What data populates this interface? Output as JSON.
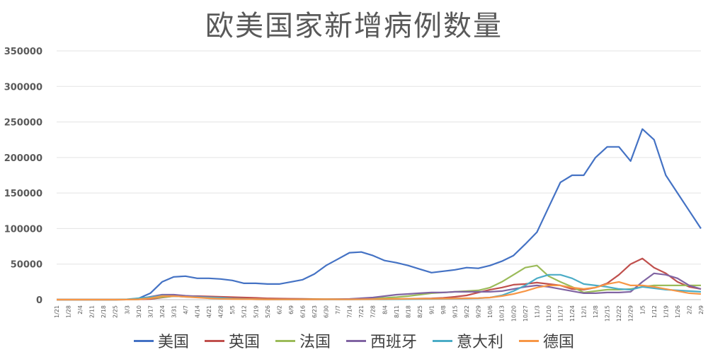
{
  "chart_data": {
    "type": "line",
    "title": "欧美国家新增病例数量",
    "xlabel": "",
    "ylabel": "",
    "ylim": [
      0,
      350000
    ],
    "y_ticks": [
      "0",
      "50000",
      "100000",
      "150000",
      "200000",
      "250000",
      "300000",
      "350000"
    ],
    "x_tick_labels": [
      "1/21",
      "1/28",
      "2/4",
      "2/11",
      "2/18",
      "2/25",
      "3/3",
      "3/10",
      "3/17",
      "3/24",
      "3/31",
      "4/7",
      "4/14",
      "4/21",
      "4/28",
      "5/5",
      "5/12",
      "5/19",
      "5/26",
      "6/2",
      "6/9",
      "6/16",
      "6/23",
      "6/30",
      "7/7",
      "7/14",
      "7/21",
      "7/28",
      "8/4",
      "8/11",
      "8/18",
      "8/25",
      "9/1",
      "9/8",
      "9/15",
      "9/22",
      "9/29",
      "10/6",
      "10/13",
      "10/20",
      "10/27",
      "11/3",
      "11/10",
      "11/17",
      "11/24",
      "12/1",
      "12/8",
      "12/15",
      "12/22",
      "12/29",
      "1/5",
      "1/12",
      "1/19",
      "1/26",
      "2/2",
      "2/9"
    ],
    "grid": "horizontal",
    "legend_position": "bottom",
    "series": [
      {
        "name": "美国",
        "color": "#4472C4",
        "values": [
          0,
          0,
          0,
          0,
          0,
          0,
          200,
          1800,
          9000,
          25000,
          32000,
          33000,
          30000,
          30000,
          29000,
          27000,
          23000,
          23000,
          22000,
          22000,
          25000,
          28000,
          36000,
          48000,
          57000,
          66000,
          67000,
          62000,
          55000,
          52000,
          48000,
          43000,
          38000,
          40000,
          42000,
          45000,
          44000,
          48000,
          54000,
          62000,
          78000,
          95000,
          130000,
          165000,
          175000,
          175000,
          200000,
          215000,
          215000,
          195000,
          240000,
          225000,
          175000,
          150000,
          125000,
          100000
        ]
      },
      {
        "name": "英国",
        "color": "#C0504D",
        "values": [
          0,
          0,
          0,
          0,
          0,
          0,
          50,
          300,
          800,
          3000,
          5000,
          5000,
          5000,
          4500,
          4000,
          3500,
          3000,
          2500,
          1800,
          1500,
          1300,
          1100,
          900,
          700,
          600,
          600,
          700,
          800,
          900,
          1000,
          1200,
          1500,
          1800,
          2500,
          4000,
          6000,
          10000,
          14000,
          17000,
          21000,
          22000,
          24000,
          22000,
          20000,
          15000,
          14000,
          17000,
          23000,
          35000,
          50000,
          58000,
          45000,
          37000,
          25000,
          18000,
          15000
        ]
      },
      {
        "name": "法国",
        "color": "#9BBB59",
        "values": [
          0,
          0,
          0,
          0,
          0,
          0,
          100,
          500,
          2000,
          3500,
          5000,
          4500,
          4000,
          2000,
          1500,
          1000,
          700,
          500,
          400,
          400,
          400,
          500,
          600,
          700,
          700,
          800,
          1000,
          1500,
          2500,
          3500,
          5000,
          7000,
          9000,
          10000,
          11000,
          12000,
          13000,
          17000,
          25000,
          35000,
          45000,
          48000,
          33000,
          25000,
          18000,
          10000,
          12000,
          14000,
          14000,
          15000,
          18000,
          20000,
          20000,
          20000,
          20000,
          20000
        ]
      },
      {
        "name": "西班牙",
        "color": "#8064A2",
        "values": [
          0,
          0,
          0,
          0,
          0,
          0,
          100,
          1200,
          4000,
          7000,
          7000,
          5500,
          4500,
          3500,
          2500,
          1500,
          800,
          500,
          400,
          300,
          300,
          300,
          400,
          500,
          700,
          1000,
          2000,
          3000,
          5000,
          7000,
          8000,
          9000,
          10000,
          10000,
          11000,
          11000,
          11000,
          11000,
          12000,
          15000,
          18000,
          20000,
          18000,
          15000,
          12000,
          9000,
          9000,
          10000,
          10000,
          11000,
          25000,
          37000,
          35000,
          30000,
          20000,
          15000
        ]
      },
      {
        "name": "意大利",
        "color": "#4BACC6",
        "values": [
          0,
          0,
          0,
          0,
          0,
          0,
          500,
          2000,
          3500,
          5500,
          5000,
          4000,
          3500,
          3000,
          2500,
          1500,
          1000,
          700,
          500,
          400,
          300,
          300,
          250,
          200,
          200,
          200,
          250,
          300,
          400,
          500,
          600,
          800,
          1000,
          1200,
          1500,
          1700,
          2000,
          3000,
          6000,
          12000,
          20000,
          30000,
          35000,
          35000,
          30000,
          22000,
          20000,
          18000,
          15000,
          14000,
          18000,
          16000,
          14000,
          13000,
          12000,
          11000
        ]
      },
      {
        "name": "德国",
        "color": "#F79646",
        "values": [
          0,
          0,
          0,
          0,
          0,
          0,
          100,
          500,
          2000,
          5000,
          5000,
          4000,
          3000,
          2000,
          1200,
          900,
          700,
          600,
          400,
          300,
          300,
          300,
          400,
          500,
          400,
          400,
          500,
          600,
          800,
          1000,
          1200,
          1300,
          1300,
          1500,
          1700,
          2000,
          2200,
          3000,
          5000,
          8000,
          12000,
          17000,
          20000,
          20000,
          17000,
          15000,
          17000,
          22000,
          25000,
          20000,
          20000,
          18000,
          15000,
          12000,
          9000,
          8000
        ]
      }
    ]
  }
}
